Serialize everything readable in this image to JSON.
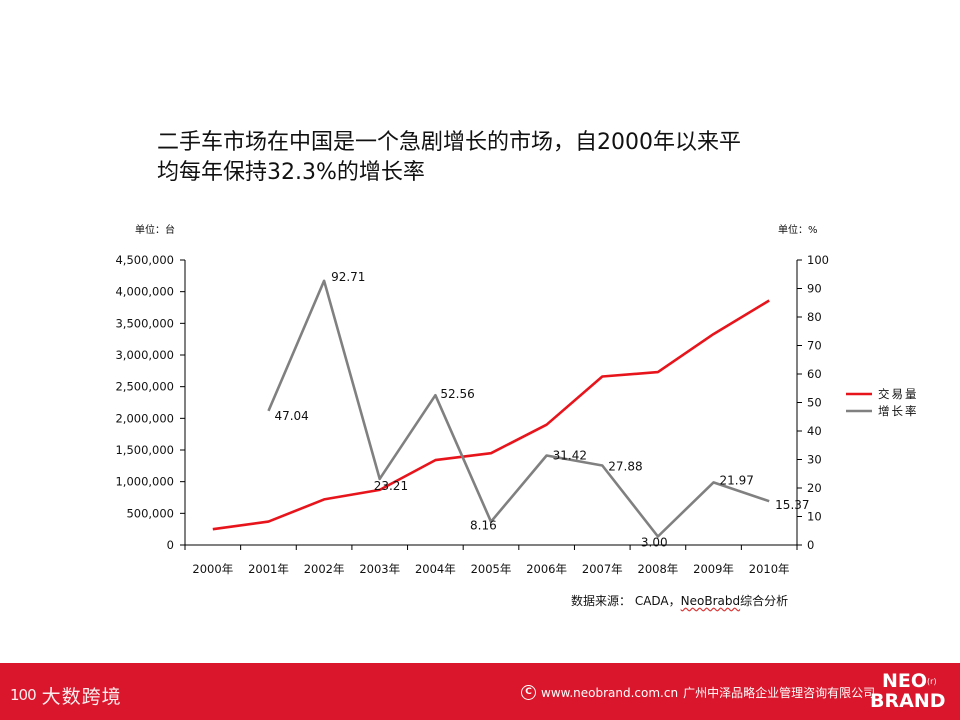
{
  "slide": {
    "title_line1": "二手车市场在中国是一个急剧增长的市场，自2000年以来平",
    "title_line2": "均每年保持32.3%的增长率",
    "source_prefix": "数据来源：  CADA，",
    "source_brand": "NeoBrabd",
    "source_suffix": "综合分析"
  },
  "footer": {
    "left_mark": "100",
    "left_text": "大数跨境",
    "copyright_icon": "copyright-icon",
    "website": "www.neobrand.com.cn",
    "company": "广州中泽品略企业管理咨询有限公司",
    "brand_line1": "NEO",
    "brand_reg": "(r)",
    "brand_line2": "BRAND",
    "background_color": "#d9162b"
  },
  "chart_data": {
    "type": "line",
    "title": "",
    "categories": [
      "2000年",
      "2001年",
      "2002年",
      "2003年",
      "2004年",
      "2005年",
      "2006年",
      "2007年",
      "2008年",
      "2009年",
      "2010年"
    ],
    "left_axis": {
      "unit_label": "单位：台",
      "ylim": [
        0,
        4500000
      ],
      "ticks": [
        0,
        500000,
        1000000,
        1500000,
        2000000,
        2500000,
        3000000,
        3500000,
        4000000,
        4500000
      ],
      "tick_labels": [
        "0",
        "500,000",
        "1,000,000",
        "1,500,000",
        "2,000,000",
        "2,500,000",
        "3,000,000",
        "3,500,000",
        "4,000,000",
        "4,500,000"
      ]
    },
    "right_axis": {
      "unit_label": "单位：%",
      "ylim": [
        0,
        100
      ],
      "ticks": [
        0,
        10,
        20,
        30,
        40,
        50,
        60,
        70,
        80,
        90,
        100
      ],
      "tick_labels": [
        "0",
        "10",
        "20",
        "30",
        "40",
        "50",
        "60",
        "70",
        "80",
        "90",
        "100"
      ]
    },
    "series": [
      {
        "name": "交易量",
        "axis": "left",
        "color": "#e8141c",
        "values": [
          250000,
          370000,
          720000,
          870000,
          1340000,
          1450000,
          1900000,
          2660000,
          2730000,
          3330000,
          3860000
        ],
        "data_labels": null
      },
      {
        "name": "增长率",
        "axis": "right",
        "color": "#808080",
        "values": [
          null,
          47.04,
          92.71,
          23.21,
          52.56,
          8.16,
          31.42,
          27.88,
          3.0,
          21.97,
          15.37
        ],
        "data_labels": [
          "",
          "47.04",
          "92.71",
          "23.21",
          "52.56",
          "8.16",
          "31.42",
          "27.88",
          "3.00",
          "21.97",
          "15.37"
        ]
      }
    ],
    "legend": {
      "position": "right"
    },
    "grid": false
  }
}
